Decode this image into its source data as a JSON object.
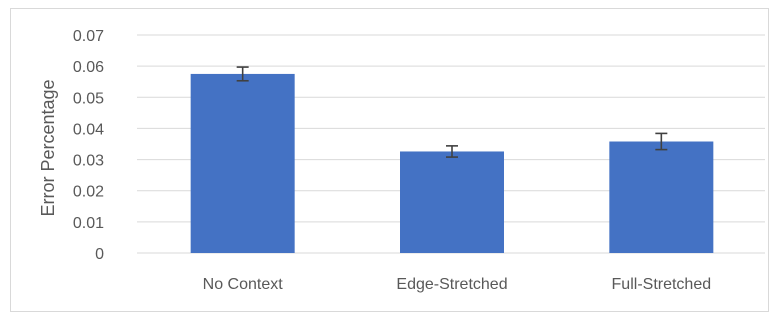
{
  "chart_data": {
    "type": "bar",
    "title": "",
    "xlabel": "",
    "ylabel": "Error Percentage",
    "categories": [
      "No Context",
      "Edge-Stretched",
      "Full-Stretched"
    ],
    "values": [
      0.0575,
      0.0326,
      0.0358
    ],
    "error": [
      0.0022,
      0.0018,
      0.0026
    ],
    "ylim": [
      0,
      0.07
    ],
    "yticks": [
      "0",
      "0.01",
      "0.02",
      "0.03",
      "0.04",
      "0.05",
      "0.06",
      "0.07"
    ],
    "grid": true,
    "legend": "none",
    "bar_color": "#4472c4"
  }
}
